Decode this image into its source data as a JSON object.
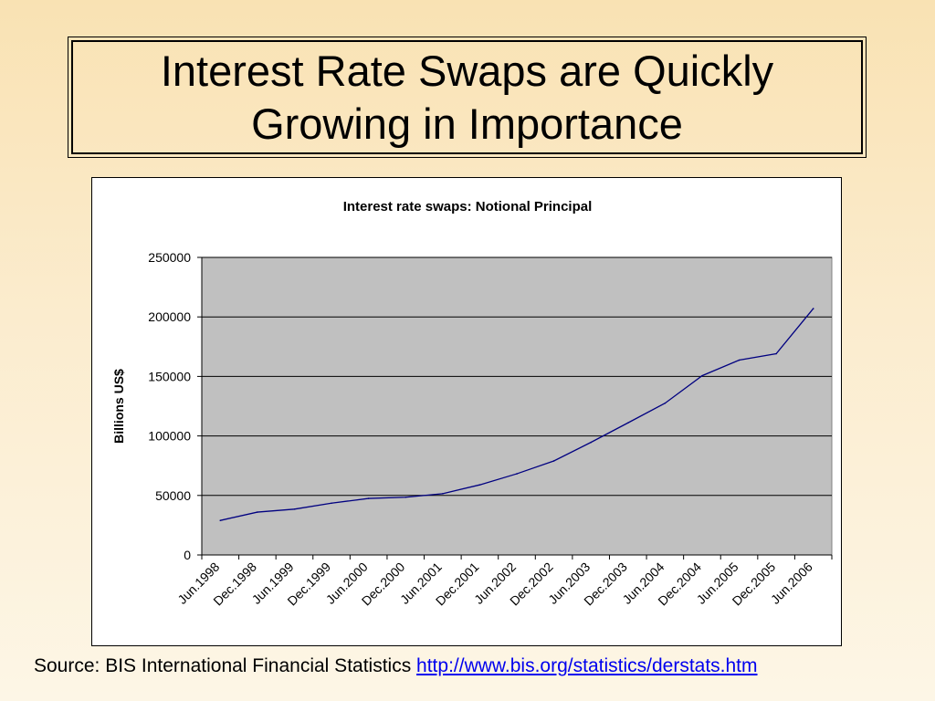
{
  "slide": {
    "title": "Interest Rate Swaps are Quickly\nGrowing in Importance",
    "source_label": "Source: BIS International Financial Statistics",
    "source_link": "http://www.bis.org/statistics/derstats.htm"
  },
  "colors": {
    "plot_background": "#c0c0c0",
    "series_line": "#000080",
    "gridline": "#000000"
  },
  "chart_data": {
    "type": "line",
    "title": "Interest rate swaps: Notional Principal",
    "ylabel": "Billions US$",
    "xlabel": "",
    "ylim": [
      0,
      250000
    ],
    "yticks": [
      0,
      50000,
      100000,
      150000,
      200000,
      250000
    ],
    "grid": true,
    "legend": "none",
    "categories": [
      "Jun.1998",
      "Dec.1998",
      "Jun.1999",
      "Dec.1999",
      "Jun.2000",
      "Dec.2000",
      "Jun.2001",
      "Dec.2001",
      "Jun.2002",
      "Dec.2002",
      "Jun.2003",
      "Dec.2003",
      "Jun.2004",
      "Dec.2004",
      "Jun.2005",
      "Dec.2005",
      "Jun.2006"
    ],
    "series": [
      {
        "values": [
          29000,
          36000,
          38500,
          43500,
          47500,
          48500,
          51500,
          58900,
          68200,
          79000,
          94600,
          111000,
          127500,
          150600,
          163700,
          169100,
          207000
        ]
      }
    ]
  }
}
